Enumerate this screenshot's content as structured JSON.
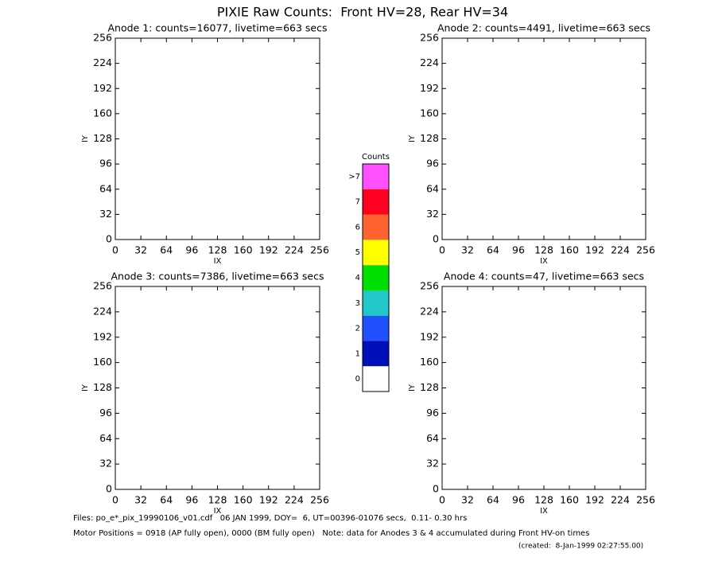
{
  "title": "PIXIE Raw Counts:  Front HV=28, Rear HV=34",
  "footer": [
    "Files: po_e*_pix_19990106_v01.cdf   06 JAN 1999, DOY=  6, UT=00396-01076 secs,  0.11- 0.30 hrs",
    "Motor Positions = 0918 (AP fully open), 0000 (BM fully open)   Note: data for Anodes 3 & 4 accumulated during Front HV-on times",
    "(created:  8-Jan-1999 02:27:55.00)"
  ],
  "chart_data": [
    {
      "type": "scatter",
      "title": "Anode 1: counts=16077, livetime=663 secs",
      "xlabel": "IX",
      "ylabel": "IY",
      "xlim": [
        0,
        256
      ],
      "ylim": [
        0,
        256
      ],
      "xticks": [
        0,
        32,
        64,
        96,
        128,
        160,
        192,
        224,
        256
      ],
      "yticks": [
        0,
        32,
        64,
        96,
        128,
        160,
        192,
        224,
        256
      ]
    },
    {
      "type": "scatter",
      "title": "Anode 2: counts=4491, livetime=663 secs",
      "xlabel": "IX",
      "ylabel": "IY",
      "xlim": [
        0,
        256
      ],
      "ylim": [
        0,
        256
      ],
      "xticks": [
        0,
        32,
        64,
        96,
        128,
        160,
        192,
        224,
        256
      ],
      "yticks": [
        0,
        32,
        64,
        96,
        128,
        160,
        192,
        224,
        256
      ]
    },
    {
      "type": "scatter",
      "title": "Anode 3: counts=7386, livetime=663 secs",
      "xlabel": "IX",
      "ylabel": "IY",
      "xlim": [
        0,
        256
      ],
      "ylim": [
        0,
        256
      ],
      "xticks": [
        0,
        32,
        64,
        96,
        128,
        160,
        192,
        224,
        256
      ],
      "yticks": [
        0,
        32,
        64,
        96,
        128,
        160,
        192,
        224,
        256
      ]
    },
    {
      "type": "scatter",
      "title": "Anode 4: counts=47, livetime=663 secs",
      "xlabel": "IX",
      "ylabel": "IY",
      "xlim": [
        0,
        256
      ],
      "ylim": [
        0,
        256
      ],
      "xticks": [
        0,
        32,
        64,
        96,
        128,
        160,
        192,
        224,
        256
      ],
      "yticks": [
        0,
        32,
        64,
        96,
        128,
        160,
        192,
        224,
        256
      ]
    },
    {
      "type": "colorbar",
      "title": "Counts",
      "categories": [
        "0",
        "1",
        "2",
        "3",
        "4",
        "5",
        "6",
        "7",
        ">7"
      ],
      "colors": [
        "#ffffff",
        "#0010b8",
        "#2050ff",
        "#20c8c8",
        "#00e000",
        "#ffff00",
        "#ff6430",
        "#ff0020",
        "#ff50ff"
      ]
    }
  ]
}
